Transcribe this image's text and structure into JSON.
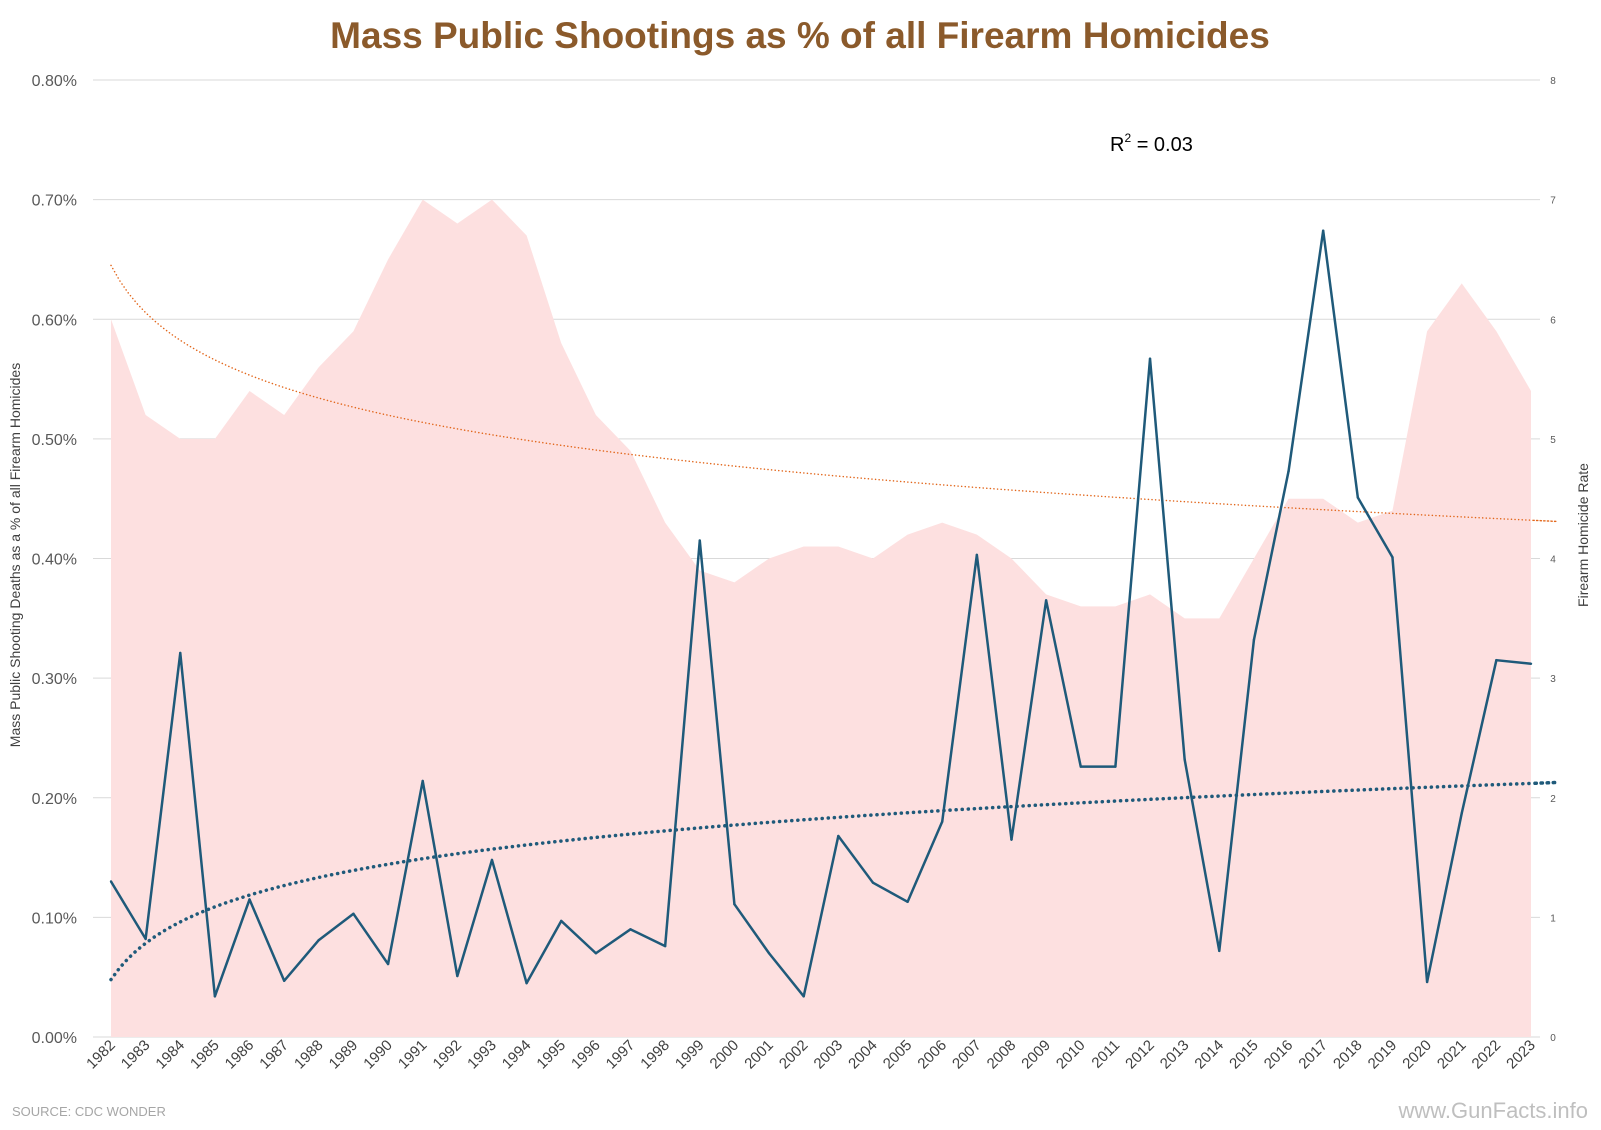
{
  "chart_data": {
    "type": "line",
    "title": "Mass Public Shootings as % of all Firearm Homicides",
    "ylabel": "Mass Public Shooting Deaths as a % of all Firearm Homicides",
    "y2label": "Firearm Homicide Rate",
    "ylim": [
      0,
      0.8
    ],
    "y2lim": [
      0,
      8
    ],
    "yticks": [
      "0.00%",
      "0.10%",
      "0.20%",
      "0.30%",
      "0.40%",
      "0.50%",
      "0.60%",
      "0.70%",
      "0.80%"
    ],
    "y2ticks": [
      "0",
      "1",
      "2",
      "3",
      "4",
      "5",
      "6",
      "7",
      "8"
    ],
    "grid": true,
    "legend": "none",
    "categories": [
      "1982",
      "1983",
      "1984",
      "1985",
      "1986",
      "1987",
      "1988",
      "1989",
      "1990",
      "1991",
      "1992",
      "1993",
      "1994",
      "1995",
      "1996",
      "1997",
      "1998",
      "1999",
      "2000",
      "2001",
      "2002",
      "2003",
      "2004",
      "2005",
      "2006",
      "2007",
      "2008",
      "2009",
      "2010",
      "2011",
      "2012",
      "2013",
      "2014",
      "2015",
      "2016",
      "2017",
      "2018",
      "2019",
      "2020",
      "2021",
      "2022",
      "2023"
    ],
    "series": [
      {
        "type": "area",
        "axis": "right",
        "color": "#fde0e0",
        "values": [
          6.0,
          5.2,
          5.0,
          5.0,
          5.4,
          5.2,
          5.6,
          5.9,
          6.5,
          7.0,
          6.8,
          7.0,
          6.7,
          5.8,
          5.2,
          4.9,
          4.3,
          3.9,
          3.8,
          4.0,
          4.1,
          4.1,
          4.0,
          4.2,
          4.3,
          4.2,
          4.0,
          3.7,
          3.6,
          3.6,
          3.7,
          3.5,
          3.5,
          4.0,
          4.5,
          4.5,
          4.3,
          4.4,
          5.9,
          6.3,
          5.9,
          5.4
        ]
      },
      {
        "type": "line",
        "axis": "left",
        "color": "#1f5a7a",
        "values": [
          0.13,
          0.082,
          0.321,
          0.034,
          0.115,
          0.047,
          0.081,
          0.103,
          0.061,
          0.214,
          0.051,
          0.148,
          0.045,
          0.097,
          0.07,
          0.09,
          0.076,
          0.415,
          0.111,
          0.07,
          0.034,
          0.168,
          0.129,
          0.113,
          0.18,
          0.403,
          0.165,
          0.365,
          0.226,
          0.226,
          0.567,
          0.232,
          0.072,
          0.332,
          0.473,
          0.674,
          0.451,
          0.401,
          0.046,
          0.187,
          0.315,
          0.312
        ]
      },
      {
        "type": "trendline",
        "style": "dotted",
        "axis": "left",
        "color": "#1f5a7a",
        "start": 0.048,
        "end": 0.212
      },
      {
        "type": "trendline",
        "style": "dotted",
        "axis": "right",
        "color": "#e2671c",
        "start": 6.45,
        "end": 4.32
      }
    ],
    "annotations": [
      {
        "base": "R",
        "sup": "2",
        "rest": " = 0.03"
      }
    ],
    "source": "SOURCE: CDC WONDER",
    "watermark": "www.GunFacts.info",
    "colors": {
      "title": "#8b5a2b",
      "grid": "#d9d9d9"
    }
  }
}
